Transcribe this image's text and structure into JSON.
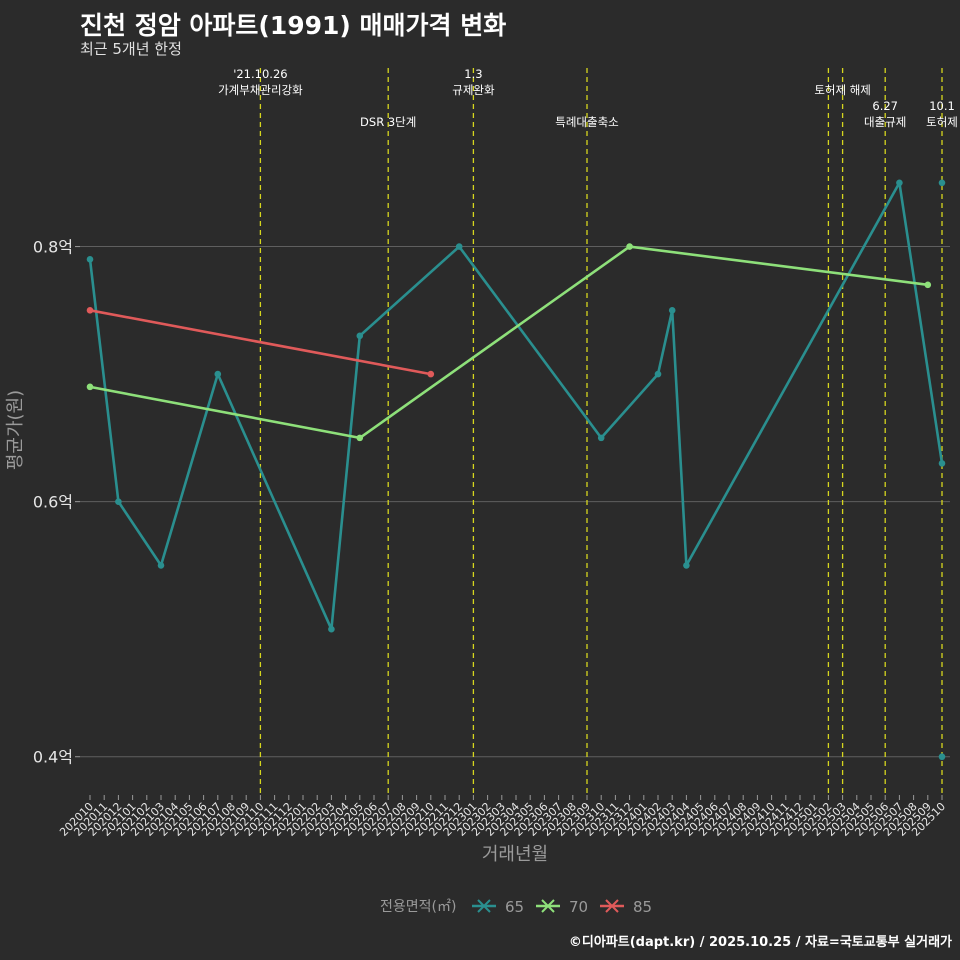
{
  "header": {
    "title": "진천 정암 아파트(1991) 매매가격 변화",
    "subtitle": "최근 5개년 한정"
  },
  "caption": "©디아파트(dapt.kr) / 2025.10.25 / 자료=국토교통부 실거래가",
  "colors": {
    "background": "#2b2b2b",
    "grid": "#5f5f5f",
    "event_line": "#d6d61e",
    "series_65": "#2a8f8f",
    "series_70": "#8ee07a",
    "series_85": "#e05a5a"
  },
  "chart_data": {
    "type": "line",
    "xlabel": "거래년월",
    "ylabel": "평균가(원)",
    "ylim": [
      0.37,
      0.94
    ],
    "yticks": [
      {
        "value": 0.4,
        "label": "0.4억"
      },
      {
        "value": 0.6,
        "label": "0.6억"
      },
      {
        "value": 0.8,
        "label": "0.8억"
      }
    ],
    "categories": [
      "202010",
      "202011",
      "202012",
      "202101",
      "202102",
      "202103",
      "202104",
      "202105",
      "202106",
      "202107",
      "202108",
      "202109",
      "202110",
      "202111",
      "202112",
      "202201",
      "202202",
      "202203",
      "202204",
      "202205",
      "202206",
      "202207",
      "202208",
      "202209",
      "202210",
      "202211",
      "202212",
      "202301",
      "202302",
      "202303",
      "202304",
      "202305",
      "202306",
      "202307",
      "202308",
      "202309",
      "202310",
      "202311",
      "202312",
      "202401",
      "202402",
      "202403",
      "202404",
      "202405",
      "202406",
      "202407",
      "202408",
      "202409",
      "202410",
      "202411",
      "202412",
      "202501",
      "202502",
      "202503",
      "202504",
      "202505",
      "202506",
      "202507",
      "202508",
      "202509",
      "202510"
    ],
    "legend": {
      "title": "전용면적(㎡)",
      "position": "bottom",
      "items": [
        {
          "name": "65",
          "color": "#2a8f8f"
        },
        {
          "name": "70",
          "color": "#8ee07a"
        },
        {
          "name": "85",
          "color": "#e05a5a"
        }
      ]
    },
    "series": [
      {
        "name": "65",
        "color": "#2a8f8f",
        "points": [
          {
            "x": "202010",
            "y": 0.79
          },
          {
            "x": "202012",
            "y": 0.6
          },
          {
            "x": "202103",
            "y": 0.55
          },
          {
            "x": "202107",
            "y": 0.7
          },
          {
            "x": "202203",
            "y": 0.5
          },
          {
            "x": "202205",
            "y": 0.73
          },
          {
            "x": "202212",
            "y": 0.8
          },
          {
            "x": "202310",
            "y": 0.65
          },
          {
            "x": "202402",
            "y": 0.7
          },
          {
            "x": "202403",
            "y": 0.75
          },
          {
            "x": "202404",
            "y": 0.55
          },
          {
            "x": "202507",
            "y": 0.85
          },
          {
            "x": "202510",
            "y": 0.63
          }
        ]
      },
      {
        "name": "70",
        "color": "#8ee07a",
        "points": [
          {
            "x": "202010",
            "y": 0.69
          },
          {
            "x": "202205",
            "y": 0.65
          },
          {
            "x": "202312",
            "y": 0.8
          },
          {
            "x": "202509",
            "y": 0.77
          }
        ]
      },
      {
        "name": "85",
        "color": "#e05a5a",
        "points": [
          {
            "x": "202010",
            "y": 0.75
          },
          {
            "x": "202210",
            "y": 0.7
          }
        ]
      }
    ],
    "extra_points": [
      {
        "series": "65",
        "x": "202510",
        "y": 0.85
      },
      {
        "series": "65",
        "x": "202510",
        "y": 0.4
      }
    ],
    "events": [
      {
        "x": "202110",
        "lines": [
          "'21.10.26",
          "가계부채관리강화"
        ],
        "level": 0
      },
      {
        "x": "202207",
        "lines": [
          "DSR 3단계"
        ],
        "level": 1
      },
      {
        "x": "202301",
        "lines": [
          "1.3",
          "규제완화"
        ],
        "level": 0
      },
      {
        "x": "202309",
        "lines": [
          "특례대출축소"
        ],
        "level": 1
      },
      {
        "x": "202502",
        "lines": [],
        "level": 0
      },
      {
        "x": "202503",
        "lines": [
          "토허제 해제"
        ],
        "level": 0
      },
      {
        "x": "202506",
        "lines": [
          "6.27",
          "대출규제"
        ],
        "level": 1
      },
      {
        "x": "202510",
        "lines": [
          "10.1",
          "토허제"
        ],
        "level": 1
      }
    ]
  }
}
